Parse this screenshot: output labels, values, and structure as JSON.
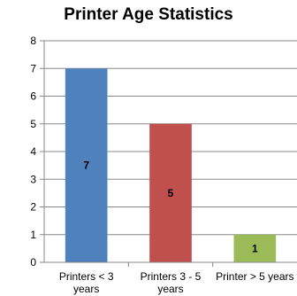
{
  "chart_data": {
    "type": "bar",
    "title": "Printer Age Statistics",
    "categories": [
      [
        "Printers < 3",
        "years"
      ],
      [
        "Printers 3 - 5",
        "years"
      ],
      [
        "Printer > 5 years"
      ]
    ],
    "values": [
      7,
      5,
      1
    ],
    "data_labels": [
      "7",
      "5",
      "1"
    ],
    "colors": [
      "#4f81bd",
      "#c0504d",
      "#9bbb59"
    ],
    "ylim": [
      0,
      8
    ],
    "yticks": [
      0,
      1,
      2,
      3,
      4,
      5,
      6,
      7,
      8
    ],
    "grid": true,
    "legend": "none"
  }
}
